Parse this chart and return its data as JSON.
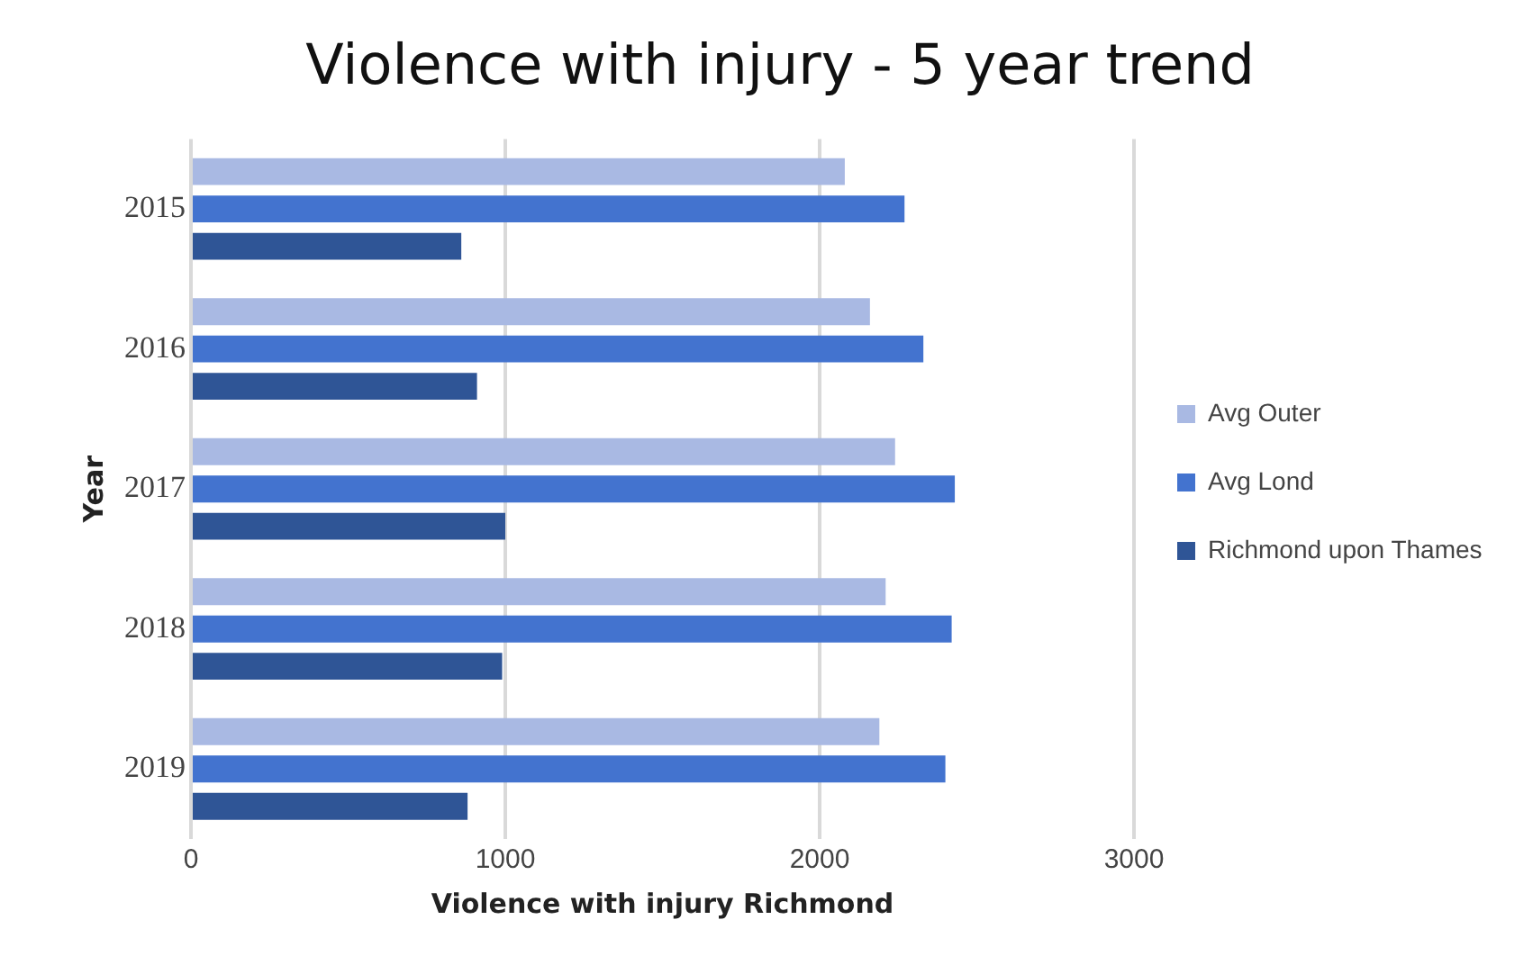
{
  "chart_data": {
    "type": "bar",
    "orientation": "horizontal",
    "title": "Violence with injury - 5 year trend",
    "xlabel": "Violence with injury Richmond",
    "ylabel": "Year",
    "categories": [
      "2015",
      "2016",
      "2017",
      "2018",
      "2019"
    ],
    "series": [
      {
        "name": "Avg Outer",
        "color": "#a9b9e3",
        "values": [
          2080,
          2160,
          2240,
          2210,
          2190
        ]
      },
      {
        "name": "Avg Lond",
        "color": "#4373cf",
        "values": [
          2270,
          2330,
          2430,
          2420,
          2400
        ]
      },
      {
        "name": "Richmond upon Thames",
        "color": "#2f5596",
        "values": [
          860,
          910,
          1000,
          990,
          880
        ]
      }
    ],
    "xlim": [
      0,
      3000
    ],
    "xticks": [
      0,
      1000,
      2000,
      3000
    ],
    "grid": "x",
    "legend": "right"
  }
}
